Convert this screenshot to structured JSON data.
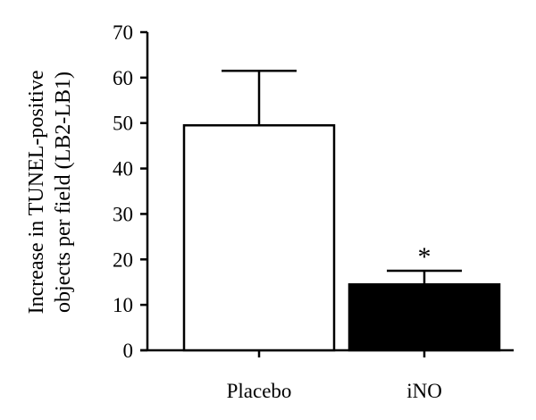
{
  "chart_data": {
    "type": "bar",
    "categories": [
      "Placebo",
      "iNO"
    ],
    "values": [
      49.5,
      14.5
    ],
    "error_upper": [
      61.5,
      17.5
    ],
    "bar_colors": [
      "#ffffff",
      "#000000"
    ],
    "bar_edge_color": "#000000",
    "ylabel_lines": [
      "Increase in TUNEL-positive",
      "objects per field (LB2-LB1)"
    ],
    "xlabel": "",
    "ylim": [
      0,
      70
    ],
    "yticks": [
      0,
      10,
      20,
      30,
      40,
      50,
      60,
      70
    ],
    "annotations": [
      {
        "category": "iNO",
        "text": "*"
      }
    ],
    "grid": false,
    "legend": "none"
  }
}
